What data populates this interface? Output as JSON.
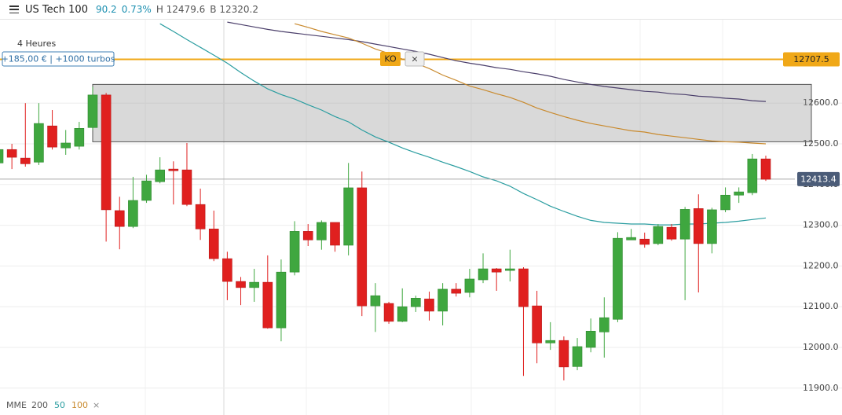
{
  "header": {
    "instrument": "US Tech 100",
    "change": "90.2",
    "change_pct": "0.73%",
    "high": "H 12479.6",
    "low": "B 12320.2"
  },
  "position": {
    "timeframe": "4 Heures",
    "summary": "+185,00 € | +1000 turbos",
    "ko_label": "KO",
    "ko_close": "×"
  },
  "chart_data": {
    "type": "candlestick",
    "ylim": [
      11834,
      12805
    ],
    "yticks": [
      {
        "value": 11900,
        "label": "11900.0"
      },
      {
        "value": 12000,
        "label": "12000.0"
      },
      {
        "value": 12100,
        "label": "12100.0"
      },
      {
        "value": 12200,
        "label": "12200.0"
      },
      {
        "value": 12300,
        "label": "12300.0"
      },
      {
        "value": 12400,
        "label": "12400.0"
      },
      {
        "value": 12500,
        "label": "12500.0"
      },
      {
        "value": 12600,
        "label": "12600.0"
      }
    ],
    "grid": true,
    "up_color": "#3fa73f",
    "down_color": "#e0201f",
    "open": [
      12453,
      12486,
      12465,
      12455,
      12544,
      12490,
      12494,
      12540,
      12620,
      12336,
      12297,
      12361,
      12407,
      12438,
      12436,
      12351,
      12291,
      12218,
      12162,
      12147,
      12160,
      12048,
      12185,
      12285,
      12264,
      12307,
      12251,
      12392,
      12102,
      12108,
      12064,
      12100,
      12119,
      12089,
      12143,
      12135,
      12166,
      12193,
      12189,
      12193,
      12102,
      12011,
      12017,
      11953,
      12000,
      12038,
      12069,
      12264,
      12266,
      12255,
      12295,
      12266,
      12341,
      12255,
      12338,
      12374,
      12380,
      12463
    ],
    "high": [
      12500,
      12500,
      12600,
      12600,
      12583,
      12534,
      12554,
      12640,
      12625,
      12370,
      12419,
      12424,
      12467,
      12457,
      12502,
      12390,
      12336,
      12235,
      12173,
      12193,
      12226,
      12216,
      12310,
      12303,
      12312,
      12307,
      12453,
      12432,
      12158,
      12112,
      12145,
      12127,
      12137,
      12158,
      12158,
      12193,
      12231,
      12195,
      12240,
      12197,
      12139,
      12062,
      12027,
      12023,
      12071,
      12123,
      12283,
      12291,
      12282,
      12303,
      12303,
      12345,
      12376,
      12343,
      12393,
      12393,
      12475,
      12471
    ],
    "low": [
      12438,
      12438,
      12444,
      12448,
      12486,
      12473,
      12486,
      12534,
      12260,
      12241,
      12293,
      12355,
      12403,
      12351,
      12347,
      12264,
      12212,
      12116,
      12104,
      12112,
      12046,
      12015,
      12177,
      12249,
      12240,
      12235,
      12226,
      12077,
      12038,
      12058,
      12062,
      12087,
      12066,
      12054,
      12125,
      12123,
      12158,
      12139,
      12162,
      11930,
      11961,
      11994,
      11919,
      11944,
      11988,
      11975,
      12062,
      12264,
      12245,
      12251,
      12262,
      12116,
      12135,
      12231,
      12332,
      12355,
      12374,
      12409
    ],
    "close": [
      12486,
      12467,
      12451,
      12550,
      12492,
      12502,
      12538,
      12620,
      12338,
      12297,
      12361,
      12409,
      12436,
      12434,
      12351,
      12291,
      12218,
      12162,
      12147,
      12160,
      12048,
      12185,
      12285,
      12264,
      12307,
      12251,
      12392,
      12102,
      12127,
      12064,
      12100,
      12121,
      12089,
      12143,
      12133,
      12168,
      12193,
      12185,
      12193,
      12100,
      12011,
      12017,
      11952,
      12002,
      12040,
      12073,
      12268,
      12270,
      12253,
      12297,
      12266,
      12339,
      12255,
      12338,
      12374,
      12382,
      12463,
      12413
    ],
    "legend_title": "MME",
    "series": [
      {
        "name": "200",
        "color": "#4b3f6b",
        "values": [
          null,
          null,
          null,
          null,
          null,
          null,
          null,
          null,
          null,
          null,
          null,
          null,
          null,
          null,
          null,
          null,
          null,
          12799,
          12793,
          12787,
          12781,
          12776,
          12772,
          12768,
          12764,
          12760,
          12756,
          12751,
          12745,
          12739,
          12733,
          12727,
          12720,
          12712,
          12704,
          12698,
          12693,
          12687,
          12683,
          12677,
          12672,
          12666,
          12658,
          12652,
          12646,
          12641,
          12637,
          12633,
          12629,
          12627,
          12623,
          12621,
          12617,
          12615,
          12612,
          12610,
          12606,
          12604
        ]
      },
      {
        "name": "50",
        "color": "#2a9da0",
        "values": [
          null,
          null,
          null,
          null,
          null,
          null,
          null,
          null,
          null,
          null,
          null,
          null,
          12795,
          12776,
          12756,
          12737,
          12718,
          12698,
          12675,
          12654,
          12635,
          12621,
          12610,
          12596,
          12583,
          12567,
          12554,
          12534,
          12517,
          12504,
          12490,
          12478,
          12467,
          12455,
          12444,
          12432,
          12419,
          12409,
          12396,
          12378,
          12363,
          12347,
          12334,
          12322,
          12312,
          12307,
          12305,
          12303,
          12303,
          12301,
          12301,
          12303,
          12303,
          12305,
          12307,
          12310,
          12314,
          12318
        ]
      },
      {
        "name": "100",
        "color": "#c98a2e",
        "values": [
          null,
          null,
          null,
          null,
          null,
          null,
          null,
          null,
          null,
          null,
          null,
          null,
          null,
          null,
          null,
          null,
          null,
          null,
          null,
          null,
          null,
          null,
          12795,
          12786,
          12776,
          12768,
          12760,
          12747,
          12733,
          12722,
          12708,
          12698,
          12685,
          12669,
          12656,
          12642,
          12633,
          12623,
          12614,
          12602,
          12588,
          12577,
          12567,
          12558,
          12550,
          12544,
          12538,
          12532,
          12529,
          12523,
          12519,
          12515,
          12511,
          12507,
          12505,
          12504,
          12502,
          12500
        ]
      }
    ],
    "zone": [
      12505,
      12646
    ],
    "ko_level": 12707.5,
    "ko_color": "#f0a818",
    "last": 12413.4,
    "last_color": "#4b5c78",
    "legend_close": "×"
  }
}
